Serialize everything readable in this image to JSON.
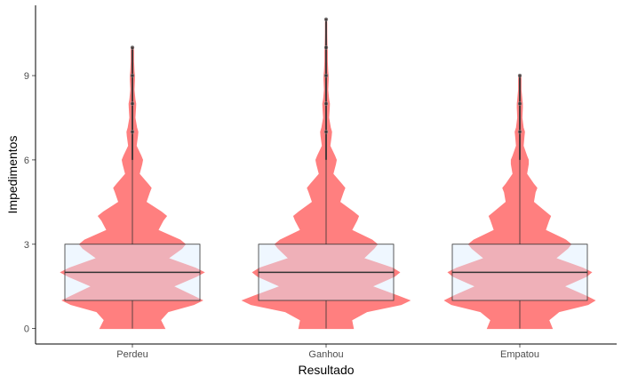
{
  "chart_data": {
    "type": "violin",
    "xlabel": "Resultado",
    "ylabel": "Impedimentos",
    "categories": [
      "Perdeu",
      "Ganhou",
      "Empatou"
    ],
    "ylim": [
      -0.55,
      11.5
    ],
    "yticks": [
      0,
      3,
      6,
      9
    ],
    "grid": false,
    "legend": "none",
    "colors": {
      "violin_fill": "#ff7f7f",
      "box_fill": "#dbeeff",
      "box_stroke": "#333333",
      "point": "#333333",
      "point_outline": "#999999"
    },
    "boxes": [
      {
        "name": "Perdeu",
        "q1": 1,
        "median": 2,
        "q3": 3,
        "whisker_low": 0,
        "whisker_high": 6
      },
      {
        "name": "Ganhou",
        "q1": 1,
        "median": 2,
        "q3": 3,
        "whisker_low": 0,
        "whisker_high": 6
      },
      {
        "name": "Empatou",
        "q1": 1,
        "median": 2,
        "q3": 3,
        "whisker_low": 0,
        "whisker_high": 6
      }
    ],
    "outliers": [
      {
        "name": "Perdeu",
        "values": [
          7,
          8,
          9,
          10
        ]
      },
      {
        "name": "Ganhou",
        "values": [
          7,
          8,
          9,
          10,
          11
        ]
      },
      {
        "name": "Empatou",
        "values": [
          7,
          8,
          9
        ]
      }
    ],
    "violin_width_profile": {
      "y": [
        0,
        0.3,
        0.6,
        0.85,
        1.0,
        1.15,
        1.5,
        1.85,
        2.0,
        2.15,
        2.5,
        2.85,
        3.0,
        3.15,
        3.5,
        3.85,
        4.0,
        4.15,
        4.5,
        4.85,
        5.0,
        5.15,
        5.5,
        5.85,
        6.0,
        6.15,
        6.5,
        6.85,
        7.0,
        7.15,
        7.5,
        7.85,
        8.0,
        8.15,
        8.5,
        8.85,
        9.0,
        9.15,
        9.5,
        9.85,
        10.0,
        10.15,
        10.5,
        10.85,
        11.0
      ],
      "series": [
        {
          "name": "Perdeu",
          "max_y": 10,
          "values": [
            0.38,
            0.33,
            0.42,
            0.72,
            0.82,
            0.72,
            0.48,
            0.75,
            0.84,
            0.74,
            0.42,
            0.58,
            0.62,
            0.56,
            0.3,
            0.36,
            0.4,
            0.34,
            0.16,
            0.2,
            0.22,
            0.18,
            0.08,
            0.11,
            0.12,
            0.1,
            0.045,
            0.06,
            0.065,
            0.05,
            0.03,
            0.038,
            0.04,
            0.03,
            0.02,
            0.025,
            0.025,
            0.02,
            0.015,
            0.015,
            0.012
          ]
        },
        {
          "name": "Ganhou",
          "max_y": 11,
          "values": [
            0.32,
            0.3,
            0.48,
            0.88,
            0.98,
            0.85,
            0.54,
            0.8,
            0.86,
            0.78,
            0.44,
            0.56,
            0.6,
            0.54,
            0.3,
            0.36,
            0.38,
            0.32,
            0.16,
            0.2,
            0.22,
            0.18,
            0.08,
            0.11,
            0.12,
            0.1,
            0.045,
            0.06,
            0.065,
            0.05,
            0.03,
            0.038,
            0.04,
            0.03,
            0.02,
            0.025,
            0.025,
            0.02,
            0.015,
            0.015,
            0.012,
            0.01,
            0.008,
            0.008,
            0.006
          ]
        },
        {
          "name": "Empatou",
          "max_y": 9,
          "values": [
            0.38,
            0.34,
            0.46,
            0.8,
            0.88,
            0.78,
            0.52,
            0.78,
            0.84,
            0.74,
            0.42,
            0.56,
            0.6,
            0.54,
            0.3,
            0.34,
            0.36,
            0.3,
            0.16,
            0.18,
            0.2,
            0.16,
            0.08,
            0.1,
            0.1,
            0.08,
            0.04,
            0.05,
            0.055,
            0.04,
            0.025,
            0.03,
            0.03,
            0.025,
            0.015,
            0.015,
            0.012
          ]
        }
      ]
    }
  }
}
